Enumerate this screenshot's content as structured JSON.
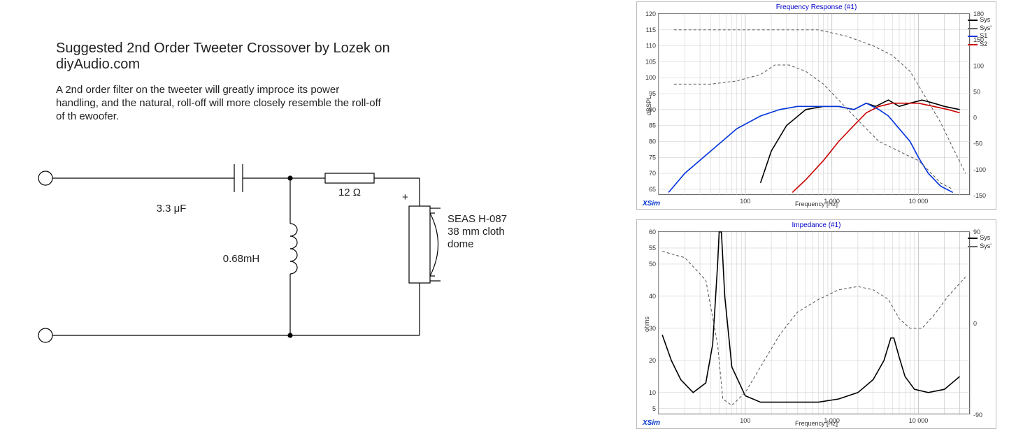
{
  "left": {
    "title": "Suggested 2nd Order Tweeter Crossover by Lozek on diyAudio.com",
    "subtitle": "A 2nd order filter on the tweeter will greatly improce its power handling, and the natural, roll-off will more closely resemble the roll-off of th ewoofer.",
    "circuit": {
      "cap_label": "3.3 μF",
      "resistor_label": "12 Ω",
      "inductor_label": "0.68mH",
      "polarity": "+",
      "speaker_line1": "SEAS H-087",
      "speaker_line2": "38 mm cloth",
      "speaker_line3": "dome",
      "stroke": "#000000",
      "stroke_width": 1.2
    }
  },
  "charts": {
    "xsim_label": "XSim",
    "xlabel": "Frequency [Hz]",
    "freq_ticks": [
      10,
      100,
      1000,
      10000
    ],
    "freq_tick_labels": [
      "",
      "100",
      "1 000",
      "10 000"
    ],
    "freq_range": [
      10,
      40000
    ],
    "background": "#ffffff",
    "grid_color": "#c8c8c8",
    "axis_color": "#666666",
    "top": {
      "title": "Frequency Response (#1)",
      "ylabel": "dBSPL",
      "y_left_ticks": [
        65,
        70,
        75,
        80,
        85,
        90,
        95,
        100,
        105,
        110,
        115,
        120
      ],
      "y_left_range": [
        63,
        120
      ],
      "y_right_ticks": [
        -150,
        -100,
        -50,
        0,
        50,
        100,
        150,
        180
      ],
      "legend": [
        {
          "label": "Sys",
          "color": "#000000"
        },
        {
          "label": "Sys'",
          "color": "#666666"
        },
        {
          "label": "S1",
          "color": "#0033dd"
        },
        {
          "label": "S2",
          "color": "#cc0000"
        }
      ],
      "series": {
        "sys_black": {
          "color": "#000000",
          "width": 1.6,
          "points": [
            [
              150,
              67
            ],
            [
              200,
              77
            ],
            [
              300,
              85
            ],
            [
              500,
              90
            ],
            [
              800,
              91
            ],
            [
              1200,
              91
            ],
            [
              1800,
              90
            ],
            [
              2500,
              92
            ],
            [
              3200,
              91
            ],
            [
              4500,
              93
            ],
            [
              6000,
              91
            ],
            [
              8000,
              92
            ],
            [
              11000,
              93
            ],
            [
              15000,
              92
            ],
            [
              20000,
              91
            ],
            [
              30000,
              90
            ]
          ]
        },
        "s1_blue": {
          "color": "#0033dd",
          "width": 1.6,
          "points": [
            [
              13,
              64
            ],
            [
              20,
              70
            ],
            [
              40,
              77
            ],
            [
              80,
              84
            ],
            [
              150,
              88
            ],
            [
              250,
              90
            ],
            [
              400,
              91
            ],
            [
              700,
              91
            ],
            [
              1200,
              91
            ],
            [
              1800,
              90
            ],
            [
              2500,
              92
            ],
            [
              3500,
              90
            ],
            [
              4500,
              88
            ],
            [
              6000,
              84
            ],
            [
              8000,
              80
            ],
            [
              10000,
              75
            ],
            [
              13000,
              70
            ],
            [
              18000,
              66
            ],
            [
              25000,
              64
            ]
          ]
        },
        "s2_red": {
          "color": "#cc0000",
          "width": 1.6,
          "points": [
            [
              350,
              64
            ],
            [
              500,
              68
            ],
            [
              800,
              74
            ],
            [
              1200,
              80
            ],
            [
              1800,
              85
            ],
            [
              2500,
              89
            ],
            [
              3500,
              91
            ],
            [
              5000,
              92
            ],
            [
              7000,
              92
            ],
            [
              10000,
              92
            ],
            [
              15000,
              91
            ],
            [
              22000,
              90
            ],
            [
              30000,
              89
            ]
          ]
        },
        "sys_dash": {
          "color": "#555555",
          "width": 1.0,
          "dash": "4 3",
          "points": [
            [
              15,
              98
            ],
            [
              40,
              98
            ],
            [
              80,
              99
            ],
            [
              150,
              101
            ],
            [
              220,
              104
            ],
            [
              320,
              104
            ],
            [
              500,
              102
            ],
            [
              800,
              98
            ],
            [
              1200,
              93
            ],
            [
              1800,
              88
            ],
            [
              2500,
              84
            ],
            [
              3500,
              80
            ],
            [
              5000,
              78
            ],
            [
              7000,
              76
            ],
            [
              10000,
              74
            ],
            [
              13000,
              71
            ],
            [
              18000,
              67
            ],
            [
              25000,
              65
            ]
          ]
        },
        "sys_dash2": {
          "color": "#555555",
          "width": 1.0,
          "dash": "4 3",
          "points": [
            [
              15,
              115
            ],
            [
              100,
              115
            ],
            [
              300,
              115
            ],
            [
              700,
              115
            ],
            [
              1500,
              113
            ],
            [
              3000,
              110
            ],
            [
              5000,
              107
            ],
            [
              8000,
              102
            ],
            [
              12000,
              94
            ],
            [
              18000,
              86
            ],
            [
              25000,
              78
            ],
            [
              35000,
              70
            ]
          ]
        }
      }
    },
    "bottom": {
      "title": "Impedance (#1)",
      "ylabel": "ohms",
      "y_left_ticks": [
        5,
        10,
        20,
        30,
        40,
        50,
        55,
        60
      ],
      "y_left_range": [
        3,
        60
      ],
      "y_right_ticks": [
        -90,
        0,
        90
      ],
      "legend": [
        {
          "label": "Sys",
          "color": "#000000"
        },
        {
          "label": "Sys'",
          "color": "#666666"
        }
      ],
      "series": {
        "sys_black": {
          "color": "#000000",
          "width": 1.6,
          "points": [
            [
              11,
              28
            ],
            [
              14,
              20
            ],
            [
              18,
              14
            ],
            [
              25,
              10
            ],
            [
              35,
              13
            ],
            [
              42,
              25
            ],
            [
              48,
              50
            ],
            [
              50,
              60
            ],
            [
              53,
              60
            ],
            [
              58,
              40
            ],
            [
              70,
              18
            ],
            [
              100,
              9
            ],
            [
              150,
              7
            ],
            [
              250,
              7
            ],
            [
              400,
              7
            ],
            [
              700,
              7
            ],
            [
              1200,
              8
            ],
            [
              2000,
              10
            ],
            [
              3000,
              14
            ],
            [
              4000,
              20
            ],
            [
              4800,
              27
            ],
            [
              5200,
              27
            ],
            [
              6000,
              21
            ],
            [
              7000,
              15
            ],
            [
              9000,
              11
            ],
            [
              13000,
              10
            ],
            [
              20000,
              11
            ],
            [
              30000,
              15
            ]
          ]
        },
        "sys_dash": {
          "color": "#555555",
          "width": 1.0,
          "dash": "4 3",
          "points": [
            [
              11,
              54
            ],
            [
              20,
              52
            ],
            [
              35,
              45
            ],
            [
              48,
              25
            ],
            [
              55,
              8
            ],
            [
              70,
              6
            ],
            [
              100,
              10
            ],
            [
              150,
              18
            ],
            [
              250,
              28
            ],
            [
              400,
              35
            ],
            [
              700,
              39
            ],
            [
              1200,
              42
            ],
            [
              2000,
              43
            ],
            [
              3000,
              42
            ],
            [
              4500,
              39
            ],
            [
              6000,
              33
            ],
            [
              8000,
              30
            ],
            [
              11000,
              30
            ],
            [
              15000,
              34
            ],
            [
              22000,
              40
            ],
            [
              35000,
              46
            ]
          ]
        }
      }
    }
  }
}
